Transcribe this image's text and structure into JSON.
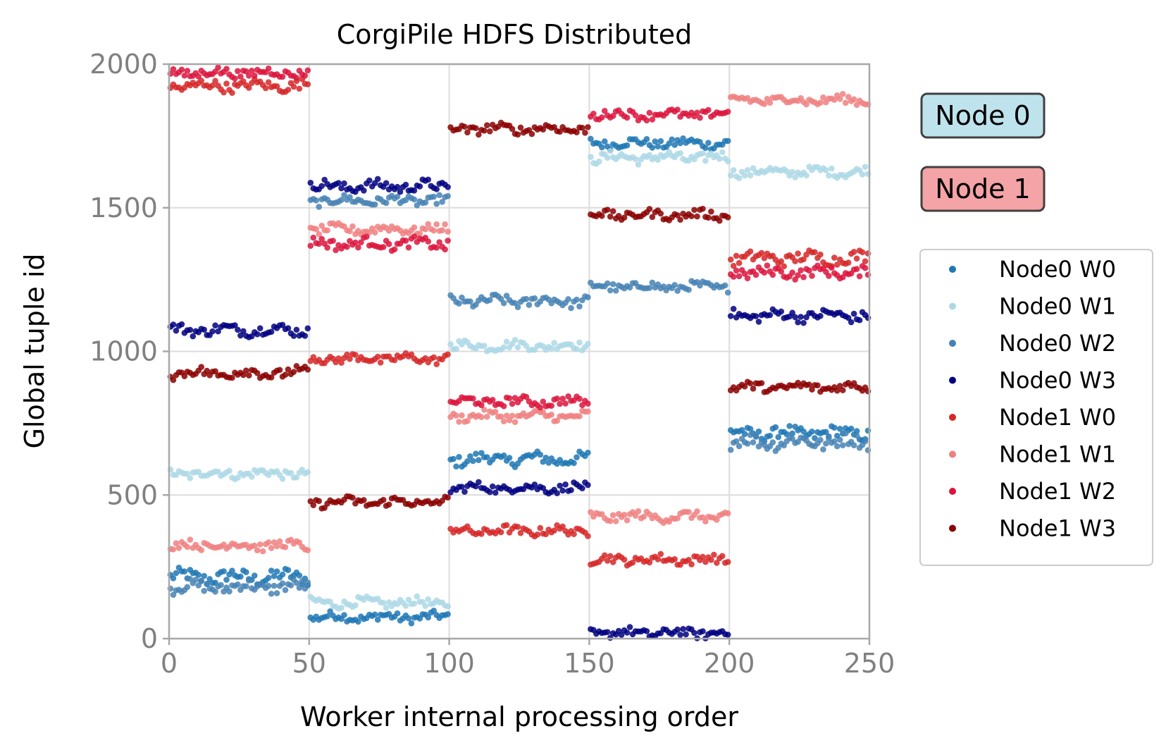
{
  "chart_data": {
    "type": "scatter",
    "title": "CorgiPile HDFS Distributed",
    "xlabel": "Worker internal processing order",
    "ylabel": "Global tuple id",
    "xlim": [
      0,
      250
    ],
    "ylim": [
      0,
      2000
    ],
    "xticks": [
      "0",
      "50",
      "100",
      "150",
      "200",
      "250"
    ],
    "yticks": [
      "0",
      "500",
      "1000",
      "1500",
      "2000"
    ],
    "grid": true,
    "legend_position": "right",
    "node_boxes": [
      {
        "label": "Node 0",
        "color": "#bfe3ec"
      },
      {
        "label": "Node 1",
        "color": "#f4a3a6"
      }
    ],
    "series": [
      {
        "name": "Node0 W0",
        "color": "#1f77b4",
        "segments": [
          [
            0,
            50,
            215,
            45
          ],
          [
            50,
            100,
            75,
            30
          ],
          [
            100,
            150,
            625,
            40
          ],
          [
            150,
            200,
            1725,
            30
          ],
          [
            200,
            250,
            715,
            40
          ]
        ]
      },
      {
        "name": "Node0 W1",
        "color": "#add8e6",
        "segments": [
          [
            0,
            50,
            575,
            30
          ],
          [
            50,
            100,
            125,
            30
          ],
          [
            100,
            150,
            1020,
            30
          ],
          [
            150,
            200,
            1675,
            35
          ],
          [
            200,
            250,
            1625,
            30
          ]
        ]
      },
      {
        "name": "Node0 W2",
        "color": "#4682b4",
        "segments": [
          [
            0,
            50,
            180,
            40
          ],
          [
            50,
            100,
            1525,
            30
          ],
          [
            100,
            150,
            1175,
            35
          ],
          [
            150,
            200,
            1225,
            30
          ],
          [
            200,
            250,
            685,
            45
          ]
        ]
      },
      {
        "name": "Node0 W3",
        "color": "#000080",
        "segments": [
          [
            0,
            50,
            1075,
            35
          ],
          [
            50,
            100,
            1575,
            35
          ],
          [
            100,
            150,
            525,
            30
          ],
          [
            150,
            200,
            20,
            30
          ],
          [
            200,
            250,
            1125,
            35
          ]
        ]
      },
      {
        "name": "Node1 W0",
        "color": "#d62728",
        "segments": [
          [
            0,
            50,
            1925,
            35
          ],
          [
            50,
            100,
            975,
            30
          ],
          [
            100,
            150,
            375,
            30
          ],
          [
            150,
            200,
            275,
            30
          ],
          [
            200,
            250,
            1325,
            40
          ]
        ]
      },
      {
        "name": "Node1 W1",
        "color": "#f08080",
        "segments": [
          [
            0,
            50,
            325,
            30
          ],
          [
            50,
            100,
            1425,
            30
          ],
          [
            100,
            150,
            775,
            30
          ],
          [
            150,
            200,
            425,
            30
          ],
          [
            200,
            250,
            1875,
            30
          ]
        ]
      },
      {
        "name": "Node1 W2",
        "color": "#dc143c",
        "segments": [
          [
            0,
            50,
            1970,
            30
          ],
          [
            50,
            100,
            1375,
            35
          ],
          [
            100,
            150,
            825,
            30
          ],
          [
            150,
            200,
            1825,
            30
          ],
          [
            200,
            250,
            1275,
            35
          ]
        ]
      },
      {
        "name": "Node1 W3",
        "color": "#8b0000",
        "segments": [
          [
            0,
            50,
            925,
            35
          ],
          [
            50,
            100,
            475,
            30
          ],
          [
            100,
            150,
            1775,
            30
          ],
          [
            150,
            200,
            1475,
            30
          ],
          [
            200,
            250,
            875,
            30
          ]
        ]
      }
    ]
  }
}
